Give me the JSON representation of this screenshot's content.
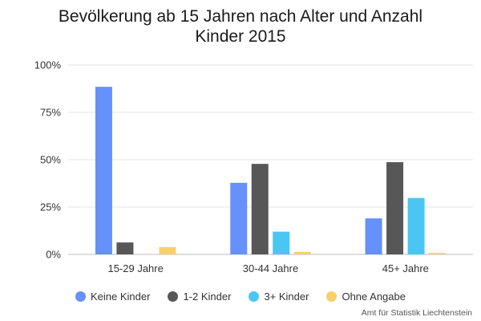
{
  "chart_data": {
    "type": "bar",
    "title": "Bevölkerung ab 15 Jahren nach Alter und Anzahl\nKinder 2015",
    "categories": [
      "15-29 Jahre",
      "30-44 Jahre",
      "45+ Jahre"
    ],
    "series": [
      {
        "name": "Keine Kinder",
        "color": "#6690fa",
        "values": [
          88.5,
          37.8,
          19.0
        ]
      },
      {
        "name": "1-2 Kinder",
        "color": "#575757",
        "values": [
          6.3,
          47.8,
          48.7
        ]
      },
      {
        "name": "3+ Kinder",
        "color": "#4ac6f2",
        "values": [
          0.0,
          12.0,
          29.8
        ]
      },
      {
        "name": "Ohne Angabe",
        "color": "#f6d069",
        "values": [
          3.9,
          1.3,
          0.8
        ]
      }
    ],
    "ylim": [
      0,
      100
    ],
    "yticks": [
      "0%",
      "25%",
      "50%",
      "75%",
      "100%"
    ],
    "ytick_values": [
      0,
      25,
      50,
      75,
      100
    ],
    "grid": true,
    "legend_position": "bottom"
  },
  "source": "Amt für Statistik Liechtenstein"
}
